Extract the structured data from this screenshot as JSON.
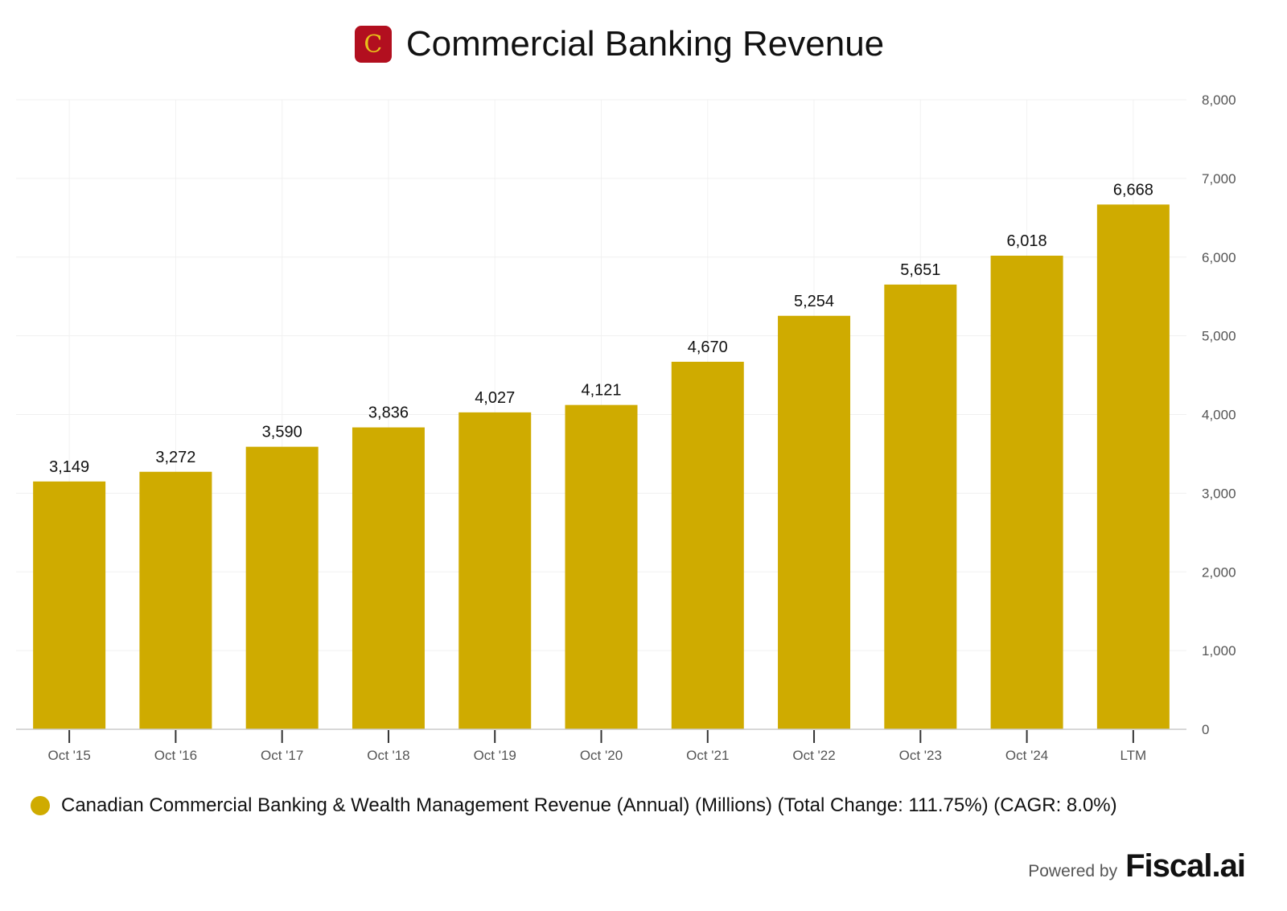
{
  "header": {
    "title": "Commercial Banking Revenue",
    "logo_letter": "C"
  },
  "chart_data": {
    "type": "bar",
    "title": "Commercial Banking Revenue",
    "categories": [
      "Oct '15",
      "Oct '16",
      "Oct '17",
      "Oct '18",
      "Oct '19",
      "Oct '20",
      "Oct '21",
      "Oct '22",
      "Oct '23",
      "Oct '24",
      "LTM"
    ],
    "values": [
      3149,
      3272,
      3590,
      3836,
      4027,
      4121,
      4670,
      5254,
      5651,
      6018,
      6668
    ],
    "value_labels": [
      "3,149",
      "3,272",
      "3,590",
      "3,836",
      "4,027",
      "4,121",
      "4,670",
      "5,254",
      "5,651",
      "6,018",
      "6,668"
    ],
    "ylim": [
      0,
      8000
    ],
    "yticks": [
      0,
      1000,
      2000,
      3000,
      4000,
      5000,
      6000,
      7000,
      8000
    ],
    "ytick_labels": [
      "0",
      "1,000",
      "2,000",
      "3,000",
      "4,000",
      "5,000",
      "6,000",
      "7,000",
      "8,000"
    ],
    "y_axis_side": "right",
    "grid": true,
    "color": "#cfab00",
    "legend": {
      "placement": "bottom-left",
      "entries": [
        "Canadian Commercial Banking & Wealth Management Revenue (Annual) (Millions) (Total Change: 111.75%) (CAGR: 8.0%)"
      ]
    }
  },
  "footer": {
    "powered_by": "Powered by",
    "brand": "Fiscal.ai"
  }
}
